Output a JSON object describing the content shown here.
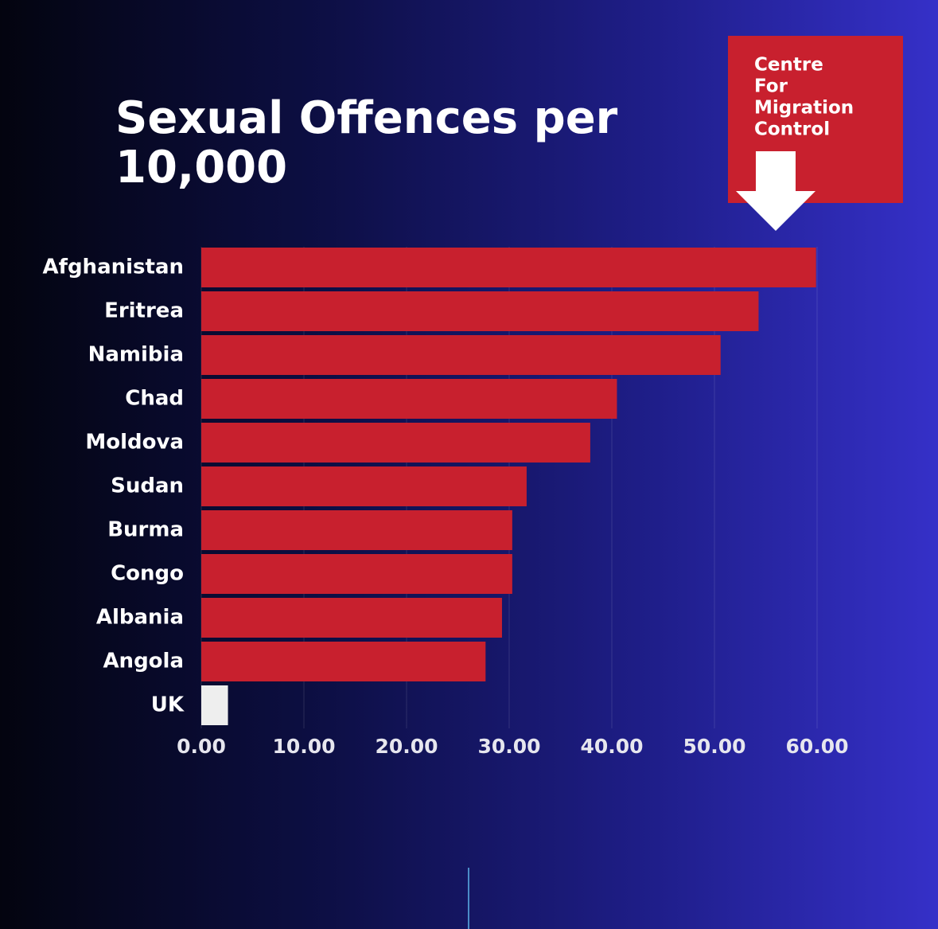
{
  "chart_data": {
    "type": "hbar",
    "title": "Sexual Offences per 10,000",
    "annotation_lines": [
      "Centre",
      "For",
      "Migration",
      "Control"
    ],
    "categories": [
      "Afghanistan",
      "Eritrea",
      "Namibia",
      "Chad",
      "Moldova",
      "Sudan",
      "Burma",
      "Congo",
      "Albania",
      "Angola",
      "UK"
    ],
    "values": [
      59.9,
      54.3,
      50.6,
      40.5,
      37.9,
      31.7,
      30.3,
      30.3,
      29.3,
      27.7,
      2.6
    ],
    "colors": [
      "#c8202e",
      "#c8202e",
      "#c8202e",
      "#c8202e",
      "#c8202e",
      "#c8202e",
      "#c8202e",
      "#c8202e",
      "#c8202e",
      "#c8202e",
      "#eeeeee"
    ],
    "xlim": [
      0,
      60
    ],
    "xticks": [
      {
        "value": 0,
        "label": "0.00"
      },
      {
        "value": 10,
        "label": "10.00"
      },
      {
        "value": 20,
        "label": "20.00"
      },
      {
        "value": 30,
        "label": "30.00"
      },
      {
        "value": 40,
        "label": "40.00"
      },
      {
        "value": 50,
        "label": "50.00"
      },
      {
        "value": 60,
        "label": "60.00"
      }
    ],
    "grid": true
  }
}
